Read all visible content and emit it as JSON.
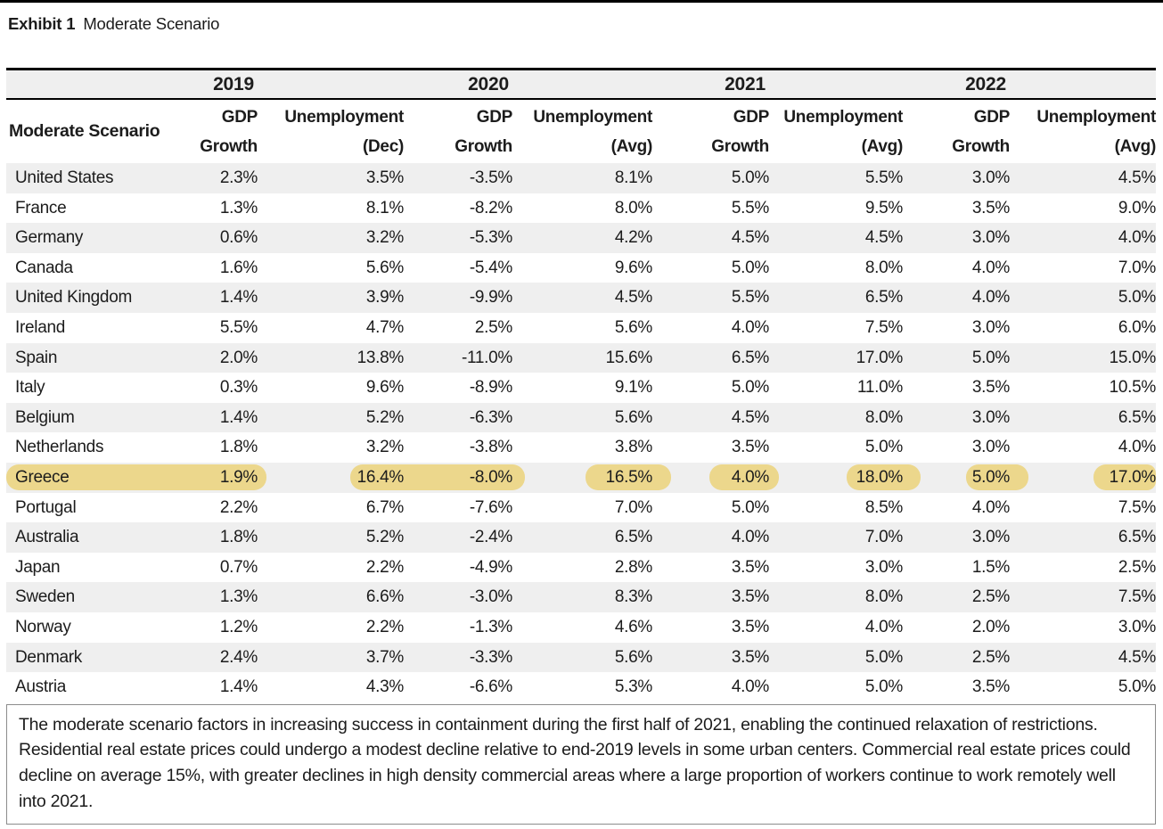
{
  "title": {
    "exhibit": "Exhibit 1",
    "name": "Moderate Scenario"
  },
  "table": {
    "corner_label": "Moderate Scenario",
    "year_groups": [
      {
        "year": "2019",
        "gdp_line1": "GDP",
        "gdp_line2": "Growth",
        "unemp_line1": "Unemployment",
        "unemp_line2": "(Dec)"
      },
      {
        "year": "2020",
        "gdp_line1": "GDP",
        "gdp_line2": "Growth",
        "unemp_line1": "Unemployment",
        "unemp_line2": "(Avg)"
      },
      {
        "year": "2021",
        "gdp_line1": "GDP",
        "gdp_line2": "Growth",
        "unemp_line1": "Unemployment",
        "unemp_line2": "(Avg)"
      },
      {
        "year": "2022",
        "gdp_line1": "GDP",
        "gdp_line2": "Growth",
        "unemp_line1": "Unemployment",
        "unemp_line2": "(Avg)"
      }
    ],
    "rows": [
      {
        "country": "United States",
        "values": [
          "2.3%",
          "3.5%",
          "-3.5%",
          "8.1%",
          "5.0%",
          "5.5%",
          "3.0%",
          "4.5%"
        ],
        "highlighted": false
      },
      {
        "country": "France",
        "values": [
          "1.3%",
          "8.1%",
          "-8.2%",
          "8.0%",
          "5.5%",
          "9.5%",
          "3.5%",
          "9.0%"
        ],
        "highlighted": false
      },
      {
        "country": "Germany",
        "values": [
          "0.6%",
          "3.2%",
          "-5.3%",
          "4.2%",
          "4.5%",
          "4.5%",
          "3.0%",
          "4.0%"
        ],
        "highlighted": false
      },
      {
        "country": "Canada",
        "values": [
          "1.6%",
          "5.6%",
          "-5.4%",
          "9.6%",
          "5.0%",
          "8.0%",
          "4.0%",
          "7.0%"
        ],
        "highlighted": false
      },
      {
        "country": "United Kingdom",
        "values": [
          "1.4%",
          "3.9%",
          "-9.9%",
          "4.5%",
          "5.5%",
          "6.5%",
          "4.0%",
          "5.0%"
        ],
        "highlighted": false
      },
      {
        "country": "Ireland",
        "values": [
          "5.5%",
          "4.7%",
          "2.5%",
          "5.6%",
          "4.0%",
          "7.5%",
          "3.0%",
          "6.0%"
        ],
        "highlighted": false
      },
      {
        "country": "Spain",
        "values": [
          "2.0%",
          "13.8%",
          "-11.0%",
          "15.6%",
          "6.5%",
          "17.0%",
          "5.0%",
          "15.0%"
        ],
        "highlighted": false
      },
      {
        "country": "Italy",
        "values": [
          "0.3%",
          "9.6%",
          "-8.9%",
          "9.1%",
          "5.0%",
          "11.0%",
          "3.5%",
          "10.5%"
        ],
        "highlighted": false
      },
      {
        "country": "Belgium",
        "values": [
          "1.4%",
          "5.2%",
          "-6.3%",
          "5.6%",
          "4.5%",
          "8.0%",
          "3.0%",
          "6.5%"
        ],
        "highlighted": false
      },
      {
        "country": "Netherlands",
        "values": [
          "1.8%",
          "3.2%",
          "-3.8%",
          "3.8%",
          "3.5%",
          "5.0%",
          "3.0%",
          "4.0%"
        ],
        "highlighted": false
      },
      {
        "country": "Greece",
        "values": [
          "1.9%",
          "16.4%",
          "-8.0%",
          "16.5%",
          "4.0%",
          "18.0%",
          "5.0%",
          "17.0%"
        ],
        "highlighted": true
      },
      {
        "country": "Portugal",
        "values": [
          "2.2%",
          "6.7%",
          "-7.6%",
          "7.0%",
          "5.0%",
          "8.5%",
          "4.0%",
          "7.5%"
        ],
        "highlighted": false
      },
      {
        "country": "Australia",
        "values": [
          "1.8%",
          "5.2%",
          "-2.4%",
          "6.5%",
          "4.0%",
          "7.0%",
          "3.0%",
          "6.5%"
        ],
        "highlighted": false
      },
      {
        "country": "Japan",
        "values": [
          "0.7%",
          "2.2%",
          "-4.9%",
          "2.8%",
          "3.5%",
          "3.0%",
          "1.5%",
          "2.5%"
        ],
        "highlighted": false
      },
      {
        "country": "Sweden",
        "values": [
          "1.3%",
          "6.6%",
          "-3.0%",
          "8.3%",
          "3.5%",
          "8.0%",
          "2.5%",
          "7.5%"
        ],
        "highlighted": false
      },
      {
        "country": "Norway",
        "values": [
          "1.2%",
          "2.2%",
          "-1.3%",
          "4.6%",
          "3.5%",
          "4.0%",
          "2.0%",
          "3.0%"
        ],
        "highlighted": false
      },
      {
        "country": "Denmark",
        "values": [
          "2.4%",
          "3.7%",
          "-3.3%",
          "5.6%",
          "3.5%",
          "5.0%",
          "2.5%",
          "4.5%"
        ],
        "highlighted": false
      },
      {
        "country": "Austria",
        "values": [
          "1.4%",
          "4.3%",
          "-6.6%",
          "5.3%",
          "4.0%",
          "5.0%",
          "3.5%",
          "5.0%"
        ],
        "highlighted": false
      }
    ]
  },
  "footnote": "The moderate scenario factors in increasing success in containment during the first half of 2021, enabling the continued relaxation of restrictions. Residential real estate prices could undergo a modest decline relative to end-2019 levels in some urban centers. Commercial real estate prices could decline on average 15%, with greater declines in high density commercial areas where a large proportion of workers continue to work remotely well into 2021.",
  "colors": {
    "row_alt": "#efefef",
    "highlight": "#ecd78c",
    "rule": "#000000",
    "box_border": "#8c8c8c"
  },
  "chart_data": {
    "type": "table",
    "title": "Exhibit 1 Moderate Scenario",
    "columns": [
      "Moderate Scenario",
      "2019 GDP Growth",
      "2019 Unemployment (Dec)",
      "2020 GDP Growth",
      "2020 Unemployment (Avg)",
      "2021 GDP Growth",
      "2021 Unemployment (Avg)",
      "2022 GDP Growth",
      "2022 Unemployment (Avg)"
    ],
    "rows": [
      [
        "United States",
        "2.3%",
        "3.5%",
        "-3.5%",
        "8.1%",
        "5.0%",
        "5.5%",
        "3.0%",
        "4.5%"
      ],
      [
        "France",
        "1.3%",
        "8.1%",
        "-8.2%",
        "8.0%",
        "5.5%",
        "9.5%",
        "3.5%",
        "9.0%"
      ],
      [
        "Germany",
        "0.6%",
        "3.2%",
        "-5.3%",
        "4.2%",
        "4.5%",
        "4.5%",
        "3.0%",
        "4.0%"
      ],
      [
        "Canada",
        "1.6%",
        "5.6%",
        "-5.4%",
        "9.6%",
        "5.0%",
        "8.0%",
        "4.0%",
        "7.0%"
      ],
      [
        "United Kingdom",
        "1.4%",
        "3.9%",
        "-9.9%",
        "4.5%",
        "5.5%",
        "6.5%",
        "4.0%",
        "5.0%"
      ],
      [
        "Ireland",
        "5.5%",
        "4.7%",
        "2.5%",
        "5.6%",
        "4.0%",
        "7.5%",
        "3.0%",
        "6.0%"
      ],
      [
        "Spain",
        "2.0%",
        "13.8%",
        "-11.0%",
        "15.6%",
        "6.5%",
        "17.0%",
        "5.0%",
        "15.0%"
      ],
      [
        "Italy",
        "0.3%",
        "9.6%",
        "-8.9%",
        "9.1%",
        "5.0%",
        "11.0%",
        "3.5%",
        "10.5%"
      ],
      [
        "Belgium",
        "1.4%",
        "5.2%",
        "-6.3%",
        "5.6%",
        "4.5%",
        "8.0%",
        "3.0%",
        "6.5%"
      ],
      [
        "Netherlands",
        "1.8%",
        "3.2%",
        "-3.8%",
        "3.8%",
        "3.5%",
        "5.0%",
        "3.0%",
        "4.0%"
      ],
      [
        "Greece",
        "1.9%",
        "16.4%",
        "-8.0%",
        "16.5%",
        "4.0%",
        "18.0%",
        "5.0%",
        "17.0%"
      ],
      [
        "Portugal",
        "2.2%",
        "6.7%",
        "-7.6%",
        "7.0%",
        "5.0%",
        "8.5%",
        "4.0%",
        "7.5%"
      ],
      [
        "Australia",
        "1.8%",
        "5.2%",
        "-2.4%",
        "6.5%",
        "4.0%",
        "7.0%",
        "3.0%",
        "6.5%"
      ],
      [
        "Japan",
        "0.7%",
        "2.2%",
        "-4.9%",
        "2.8%",
        "3.5%",
        "3.0%",
        "1.5%",
        "2.5%"
      ],
      [
        "Sweden",
        "1.3%",
        "6.6%",
        "-3.0%",
        "8.3%",
        "3.5%",
        "8.0%",
        "2.5%",
        "7.5%"
      ],
      [
        "Norway",
        "1.2%",
        "2.2%",
        "-1.3%",
        "4.6%",
        "3.5%",
        "4.0%",
        "2.0%",
        "3.0%"
      ],
      [
        "Denmark",
        "2.4%",
        "3.7%",
        "-3.3%",
        "5.6%",
        "3.5%",
        "5.0%",
        "2.5%",
        "4.5%"
      ],
      [
        "Austria",
        "1.4%",
        "4.3%",
        "-6.6%",
        "5.3%",
        "4.0%",
        "5.0%",
        "3.5%",
        "5.0%"
      ]
    ],
    "highlighted_row": "Greece",
    "notes": "Greece row marked with yellow highlighter pills"
  }
}
